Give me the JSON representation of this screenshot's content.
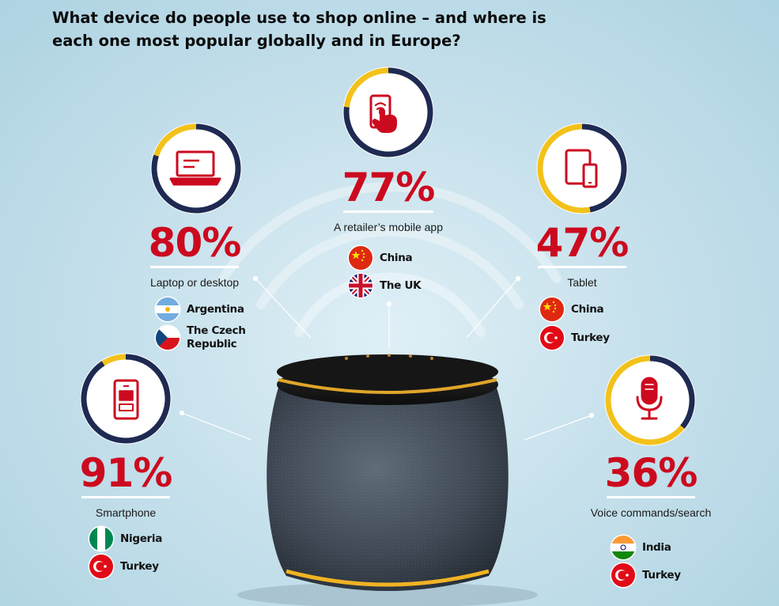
{
  "header": {
    "title": "What device do people use to shop online – and where is each one most popular globally and in Europe?"
  },
  "colors": {
    "accent_red": "#cc0a1f",
    "ring_navy": "#1e2a52",
    "ring_yellow": "#f3c11a"
  },
  "chart_data": {
    "type": "donut",
    "categories": [
      "A retailer’s mobile app",
      "Laptop or desktop",
      "Tablet",
      "Smartphone",
      "Voice commands/search"
    ],
    "values": [
      77,
      80,
      47,
      91,
      36
    ],
    "unit": "%",
    "items": [
      {
        "id": "app",
        "label": "A retailer’s mobile app",
        "value": 77,
        "value_text": "77%",
        "icon": "phone-tap-icon",
        "countries": [
          {
            "name": "China",
            "flag": "china-flag-icon"
          },
          {
            "name": "The UK",
            "flag": "uk-flag-icon"
          }
        ]
      },
      {
        "id": "laptop",
        "label": "Laptop or desktop",
        "value": 80,
        "value_text": "80%",
        "icon": "laptop-icon",
        "countries": [
          {
            "name": "Argentina",
            "flag": "argentina-flag-icon"
          },
          {
            "name": "The Czech Republic",
            "flag": "czech-flag-icon"
          }
        ]
      },
      {
        "id": "tablet",
        "label": "Tablet",
        "value": 47,
        "value_text": "47%",
        "icon": "tablet-icon",
        "countries": [
          {
            "name": "China",
            "flag": "china-flag-icon"
          },
          {
            "name": "Turkey",
            "flag": "turkey-flag-icon"
          }
        ]
      },
      {
        "id": "smartphone",
        "label": "Smartphone",
        "value": 91,
        "value_text": "91%",
        "icon": "smartphone-icon",
        "countries": [
          {
            "name": "Nigeria",
            "flag": "nigeria-flag-icon"
          },
          {
            "name": "Turkey",
            "flag": "turkey-flag-icon"
          }
        ]
      },
      {
        "id": "voice",
        "label": "Voice commands/search",
        "value": 36,
        "value_text": "36%",
        "icon": "microphone-icon",
        "countries": [
          {
            "name": "India",
            "flag": "india-flag-icon"
          },
          {
            "name": "Turkey",
            "flag": "turkey-flag-icon"
          }
        ]
      }
    ]
  }
}
